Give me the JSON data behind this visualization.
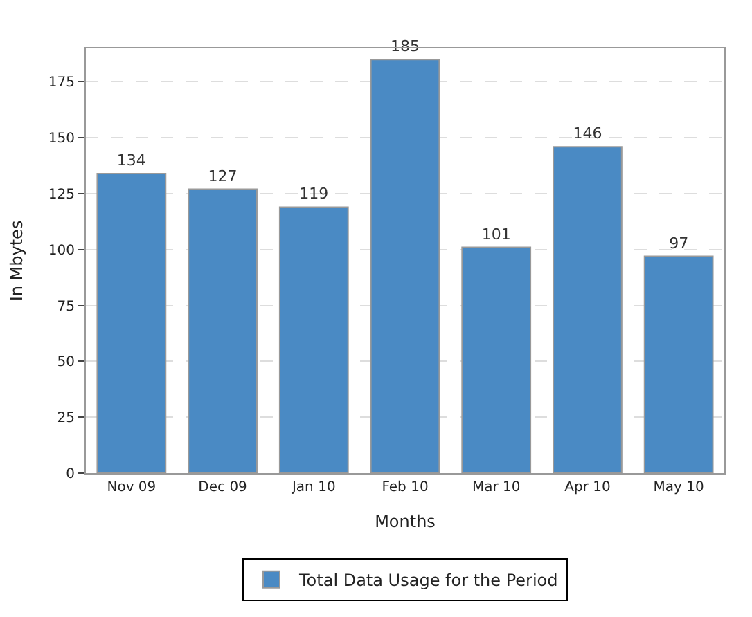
{
  "chart_data": {
    "type": "bar",
    "xlabel": "Months",
    "ylabel": "In Mbytes",
    "categories": [
      "Nov 09",
      "Dec 09",
      "Jan 10",
      "Feb 10",
      "Mar 10",
      "Apr 10",
      "May 10"
    ],
    "series": [
      {
        "name": "Total Data Usage for the Period",
        "color": "#4a8ac4",
        "values": [
          134,
          127,
          119,
          185,
          101,
          146,
          97
        ]
      }
    ],
    "ylim": [
      0,
      190
    ],
    "yticks": [
      0,
      25,
      50,
      75,
      100,
      125,
      150,
      175
    ],
    "grid": "y",
    "legend": "bottom",
    "data_labels": true
  }
}
